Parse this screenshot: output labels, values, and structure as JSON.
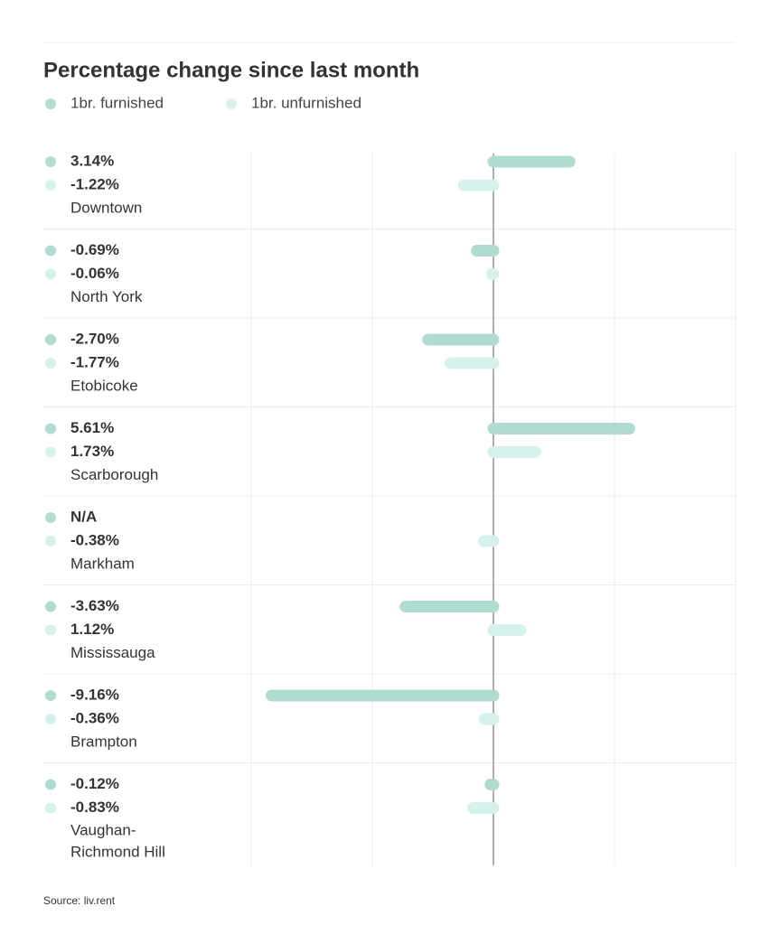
{
  "chart_data": {
    "type": "diverging-bar",
    "title": "Percentage change since last month",
    "categories": [
      "Downtown",
      "North York",
      "Etobicoke",
      "Scarborough",
      "Markham",
      "Mississauga",
      "Brampton",
      "Vaughan-Richmond Hill"
    ],
    "series": [
      {
        "name": "1br. furnished",
        "color": "#b0dbd1",
        "values": [
          3.14,
          -0.69,
          -2.7,
          5.61,
          null,
          -3.63,
          -9.16,
          -0.12
        ],
        "value_labels": [
          "3.14%",
          "-0.69%",
          "-2.70%",
          "5.61%",
          "N/A",
          "-3.63%",
          "-9.16%",
          "-0.12%"
        ]
      },
      {
        "name": "1br. unfurnished",
        "color": "#d4f1ec",
        "values": [
          -1.22,
          -0.06,
          -1.77,
          1.73,
          -0.38,
          1.12,
          -0.36,
          -0.83
        ],
        "value_labels": [
          "-1.22%",
          "-0.06%",
          "-1.77%",
          "1.73%",
          "-0.38%",
          "1.12%",
          "-0.36%",
          "-0.83%"
        ]
      }
    ],
    "xlim": [
      -10,
      10
    ],
    "xticks": [
      -10,
      -5,
      0,
      5,
      10
    ],
    "grid": true,
    "source": "Source: liv.rent"
  }
}
